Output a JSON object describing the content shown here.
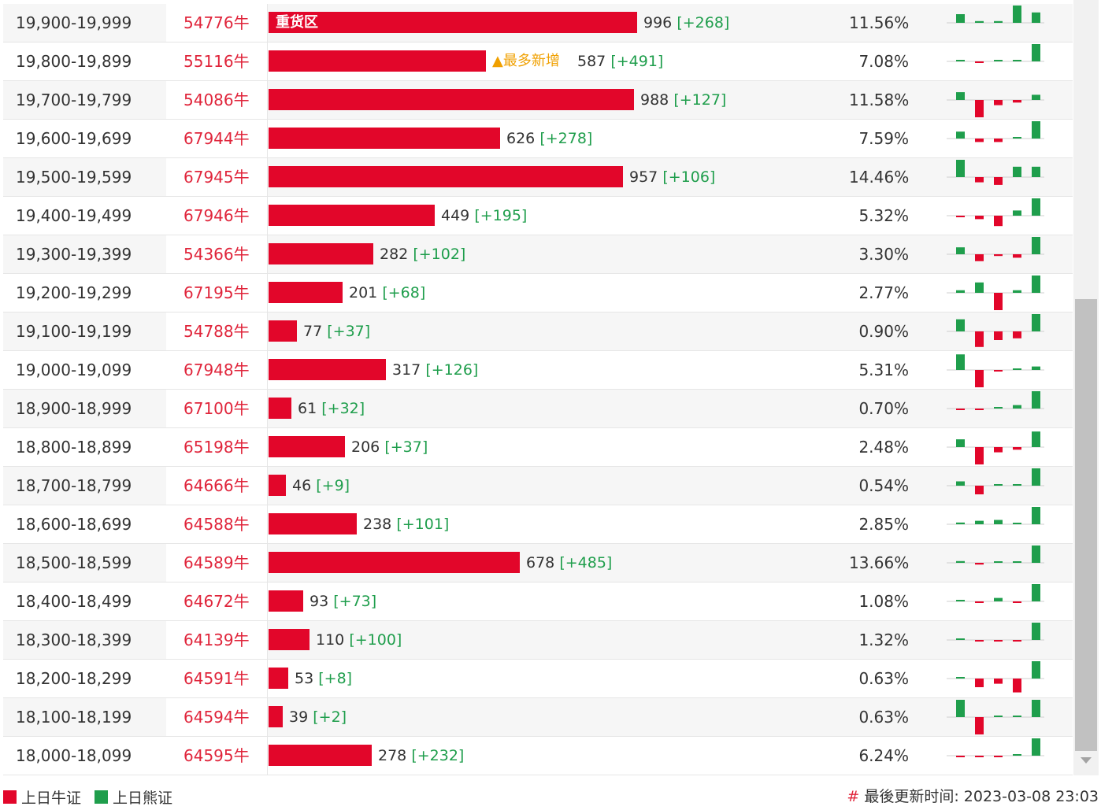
{
  "colors": {
    "bull": "#e2062a",
    "bear": "#1f9e4c",
    "note": "#f0a000"
  },
  "rows": [
    {
      "range": "19,900-19,999",
      "code": "54776牛",
      "count": "996",
      "change": "[+268]",
      "pct": "11.56%",
      "tag": "重货区",
      "spark": [
        0.5,
        0.1,
        0.1,
        1.0,
        0.6
      ]
    },
    {
      "range": "19,800-19,899",
      "code": "55116牛",
      "count": "587",
      "change": "[+491]",
      "pct": "7.08%",
      "note": "▲最多新增",
      "spark": [
        0.05,
        -0.05,
        0.05,
        0.05,
        1.0
      ]
    },
    {
      "range": "19,700-19,799",
      "code": "54086牛",
      "count": "988",
      "change": "[+127]",
      "pct": "11.58%",
      "spark": [
        0.45,
        -1.0,
        -0.3,
        -0.15,
        0.3
      ]
    },
    {
      "range": "19,600-19,699",
      "code": "67944牛",
      "count": "626",
      "change": "[+278]",
      "pct": "7.59%",
      "spark": [
        0.4,
        -0.2,
        -0.2,
        0.05,
        1.0
      ]
    },
    {
      "range": "19,500-19,599",
      "code": "67945牛",
      "count": "957",
      "change": "[+106]",
      "pct": "14.46%",
      "spark": [
        1.0,
        -0.3,
        -0.45,
        0.6,
        0.6
      ]
    },
    {
      "range": "19,400-19,499",
      "code": "67946牛",
      "count": "449",
      "change": "[+195]",
      "pct": "5.32%",
      "spark": [
        -0.05,
        -0.2,
        -0.6,
        0.3,
        1.0
      ]
    },
    {
      "range": "19,300-19,399",
      "code": "54366牛",
      "count": "282",
      "change": "[+102]",
      "pct": "3.30%",
      "spark": [
        0.4,
        -0.4,
        -0.1,
        -0.2,
        1.0
      ]
    },
    {
      "range": "19,200-19,299",
      "code": "67195牛",
      "count": "201",
      "change": "[+68]",
      "pct": "2.77%",
      "spark": [
        0.15,
        0.6,
        -1.0,
        0.15,
        1.0
      ]
    },
    {
      "range": "19,100-19,199",
      "code": "54788牛",
      "count": "77",
      "change": "[+37]",
      "pct": "0.90%",
      "spark": [
        0.7,
        -0.9,
        -0.5,
        -0.4,
        1.0
      ]
    },
    {
      "range": "19,000-19,099",
      "code": "67948牛",
      "count": "317",
      "change": "[+126]",
      "pct": "5.31%",
      "spark": [
        0.9,
        -1.0,
        -0.05,
        0.05,
        0.2
      ]
    },
    {
      "range": "18,900-18,999",
      "code": "67100牛",
      "count": "61",
      "change": "[+32]",
      "pct": "0.70%",
      "spark": [
        -0.05,
        -0.05,
        0,
        0.2,
        1.0
      ]
    },
    {
      "range": "18,800-18,899",
      "code": "65198牛",
      "count": "206",
      "change": "[+37]",
      "pct": "2.48%",
      "spark": [
        0.45,
        -1.0,
        -0.3,
        -0.15,
        0.9
      ]
    },
    {
      "range": "18,700-18,799",
      "code": "64666牛",
      "count": "46",
      "change": "[+9]",
      "pct": "0.54%",
      "spark": [
        0.25,
        -0.5,
        0,
        0,
        1.0
      ]
    },
    {
      "range": "18,600-18,699",
      "code": "64588牛",
      "count": "238",
      "change": "[+101]",
      "pct": "2.85%",
      "spark": [
        0.1,
        0.2,
        0.25,
        0.05,
        1.0
      ]
    },
    {
      "range": "18,500-18,599",
      "code": "64589牛",
      "count": "678",
      "change": "[+485]",
      "pct": "13.66%",
      "spark": [
        0.1,
        -0.1,
        0.05,
        0.05,
        1.0
      ]
    },
    {
      "range": "18,400-18,499",
      "code": "64672牛",
      "count": "93",
      "change": "[+73]",
      "pct": "1.08%",
      "spark": [
        0.05,
        -0.05,
        0.2,
        -0.05,
        1.0
      ]
    },
    {
      "range": "18,300-18,399",
      "code": "64139牛",
      "count": "110",
      "change": "[+100]",
      "pct": "1.32%",
      "spark": [
        0.05,
        -0.05,
        -0.05,
        -0.05,
        1.0
      ]
    },
    {
      "range": "18,200-18,299",
      "code": "64591牛",
      "count": "53",
      "change": "[+8]",
      "pct": "0.63%",
      "spark": [
        0,
        -0.5,
        -0.3,
        -0.8,
        1.0
      ]
    },
    {
      "range": "18,100-18,199",
      "code": "64594牛",
      "count": "39",
      "change": "[+2]",
      "pct": "0.63%",
      "spark": [
        1.0,
        -1.0,
        0,
        0,
        1.0
      ]
    },
    {
      "range": "18,000-18,099",
      "code": "64595牛",
      "count": "278",
      "change": "[+232]",
      "pct": "6.24%",
      "spark": [
        -0.05,
        -0.05,
        -0.05,
        0.05,
        1.0
      ]
    }
  ],
  "legend": {
    "bull_label": "上日牛证",
    "bear_label": "上日熊证"
  },
  "footer": {
    "hash": "#",
    "updated_label": "最後更新时间:",
    "updated_value": "2023-03-08 23:03"
  }
}
